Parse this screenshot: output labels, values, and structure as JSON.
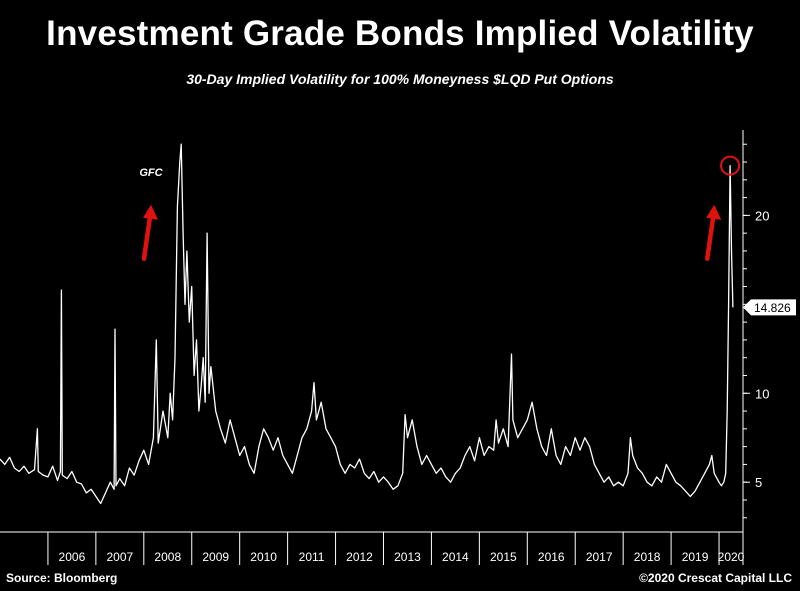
{
  "header": {
    "title": "Investment Grade Bonds Implied Volatility",
    "subtitle": "30-Day Implied Volatility for 100% Moneyness $LQD Put Options"
  },
  "footer": {
    "source": "Source: Bloomberg",
    "copyright": "©2020 Crescat Capital LLC"
  },
  "colors": {
    "background": "#000000",
    "line": "#ffffff",
    "annotation": "#e0120f"
  },
  "chart_data": {
    "type": "line",
    "title": "Investment Grade Bonds Implied Volatility",
    "subtitle": "30-Day Implied Volatility for 100% Moneyness $LQD Put Options",
    "xlabel": "",
    "ylabel": "",
    "x_range": [
      2005.0,
      2020.5
    ],
    "ylim": [
      2.2,
      24.8
    ],
    "y_ticks": [
      5,
      10,
      20
    ],
    "y_tick_labels": [
      "5",
      "10",
      "20"
    ],
    "x_tick_labels": [
      "2006",
      "2007",
      "2008",
      "2009",
      "2010",
      "2011",
      "2012",
      "2013",
      "2014",
      "2015",
      "2016",
      "2017",
      "2018",
      "2019",
      "2020"
    ],
    "grid": false,
    "last_value": 14.826,
    "last_value_label": "14.826",
    "series": [
      {
        "name": "LQD 30-Day Implied Volatility (100% Moneyness Put)",
        "points": [
          [
            2005.0,
            6.3
          ],
          [
            2005.1,
            6.0
          ],
          [
            2005.2,
            6.4
          ],
          [
            2005.3,
            5.8
          ],
          [
            2005.4,
            5.6
          ],
          [
            2005.5,
            5.9
          ],
          [
            2005.6,
            5.5
          ],
          [
            2005.72,
            5.7
          ],
          [
            2005.78,
            8.0
          ],
          [
            2005.8,
            5.6
          ],
          [
            2005.9,
            5.4
          ],
          [
            2006.0,
            5.3
          ],
          [
            2006.1,
            5.9
          ],
          [
            2006.2,
            5.1
          ],
          [
            2006.26,
            5.6
          ],
          [
            2006.28,
            15.8
          ],
          [
            2006.3,
            5.4
          ],
          [
            2006.4,
            5.2
          ],
          [
            2006.5,
            5.6
          ],
          [
            2006.6,
            5.0
          ],
          [
            2006.7,
            4.9
          ],
          [
            2006.8,
            4.4
          ],
          [
            2006.9,
            4.6
          ],
          [
            2007.0,
            4.2
          ],
          [
            2007.1,
            3.8
          ],
          [
            2007.2,
            4.4
          ],
          [
            2007.3,
            5.0
          ],
          [
            2007.38,
            4.6
          ],
          [
            2007.4,
            13.6
          ],
          [
            2007.42,
            4.8
          ],
          [
            2007.5,
            5.2
          ],
          [
            2007.6,
            4.8
          ],
          [
            2007.7,
            5.8
          ],
          [
            2007.8,
            5.4
          ],
          [
            2007.9,
            6.2
          ],
          [
            2008.0,
            6.8
          ],
          [
            2008.1,
            6.0
          ],
          [
            2008.2,
            7.5
          ],
          [
            2008.26,
            13.0
          ],
          [
            2008.3,
            7.2
          ],
          [
            2008.4,
            9.0
          ],
          [
            2008.5,
            7.5
          ],
          [
            2008.55,
            10.0
          ],
          [
            2008.6,
            8.5
          ],
          [
            2008.65,
            12.0
          ],
          [
            2008.7,
            20.5
          ],
          [
            2008.75,
            23.0
          ],
          [
            2008.78,
            24.0
          ],
          [
            2008.82,
            19.0
          ],
          [
            2008.86,
            15.0
          ],
          [
            2008.9,
            18.0
          ],
          [
            2008.95,
            14.0
          ],
          [
            2009.0,
            16.0
          ],
          [
            2009.05,
            11.0
          ],
          [
            2009.1,
            13.0
          ],
          [
            2009.15,
            9.0
          ],
          [
            2009.2,
            10.5
          ],
          [
            2009.24,
            12.0
          ],
          [
            2009.28,
            9.5
          ],
          [
            2009.32,
            19.0
          ],
          [
            2009.36,
            10.0
          ],
          [
            2009.4,
            11.5
          ],
          [
            2009.5,
            9.0
          ],
          [
            2009.6,
            8.0
          ],
          [
            2009.7,
            7.2
          ],
          [
            2009.8,
            8.5
          ],
          [
            2009.9,
            7.5
          ],
          [
            2010.0,
            6.5
          ],
          [
            2010.1,
            7.0
          ],
          [
            2010.2,
            6.0
          ],
          [
            2010.3,
            5.5
          ],
          [
            2010.4,
            7.0
          ],
          [
            2010.5,
            8.0
          ],
          [
            2010.6,
            7.5
          ],
          [
            2010.7,
            6.8
          ],
          [
            2010.8,
            7.5
          ],
          [
            2010.9,
            6.5
          ],
          [
            2011.0,
            6.0
          ],
          [
            2011.1,
            5.5
          ],
          [
            2011.2,
            6.5
          ],
          [
            2011.3,
            7.5
          ],
          [
            2011.4,
            8.0
          ],
          [
            2011.5,
            9.0
          ],
          [
            2011.55,
            10.6
          ],
          [
            2011.6,
            8.5
          ],
          [
            2011.7,
            9.5
          ],
          [
            2011.8,
            8.0
          ],
          [
            2011.9,
            7.5
          ],
          [
            2012.0,
            7.0
          ],
          [
            2012.1,
            6.0
          ],
          [
            2012.2,
            5.5
          ],
          [
            2012.3,
            6.0
          ],
          [
            2012.4,
            5.8
          ],
          [
            2012.5,
            6.3
          ],
          [
            2012.6,
            5.5
          ],
          [
            2012.7,
            5.2
          ],
          [
            2012.8,
            5.6
          ],
          [
            2012.9,
            5.0
          ],
          [
            2013.0,
            5.3
          ],
          [
            2013.1,
            5.0
          ],
          [
            2013.2,
            4.6
          ],
          [
            2013.3,
            4.8
          ],
          [
            2013.4,
            5.5
          ],
          [
            2013.45,
            8.8
          ],
          [
            2013.5,
            7.5
          ],
          [
            2013.6,
            8.5
          ],
          [
            2013.7,
            7.0
          ],
          [
            2013.8,
            6.0
          ],
          [
            2013.9,
            6.5
          ],
          [
            2014.0,
            6.0
          ],
          [
            2014.1,
            5.5
          ],
          [
            2014.2,
            5.8
          ],
          [
            2014.3,
            5.3
          ],
          [
            2014.4,
            5.0
          ],
          [
            2014.5,
            5.5
          ],
          [
            2014.6,
            5.8
          ],
          [
            2014.7,
            6.5
          ],
          [
            2014.8,
            7.0
          ],
          [
            2014.9,
            6.2
          ],
          [
            2015.0,
            7.5
          ],
          [
            2015.1,
            6.5
          ],
          [
            2015.2,
            7.0
          ],
          [
            2015.3,
            6.8
          ],
          [
            2015.35,
            8.5
          ],
          [
            2015.4,
            7.2
          ],
          [
            2015.5,
            8.0
          ],
          [
            2015.6,
            7.0
          ],
          [
            2015.67,
            12.2
          ],
          [
            2015.7,
            8.5
          ],
          [
            2015.8,
            7.5
          ],
          [
            2015.9,
            8.0
          ],
          [
            2016.0,
            8.5
          ],
          [
            2016.1,
            9.5
          ],
          [
            2016.2,
            8.0
          ],
          [
            2016.3,
            7.0
          ],
          [
            2016.4,
            6.5
          ],
          [
            2016.5,
            8.0
          ],
          [
            2016.6,
            6.5
          ],
          [
            2016.7,
            6.0
          ],
          [
            2016.8,
            7.0
          ],
          [
            2016.9,
            6.5
          ],
          [
            2017.0,
            7.5
          ],
          [
            2017.1,
            6.8
          ],
          [
            2017.2,
            7.5
          ],
          [
            2017.3,
            7.0
          ],
          [
            2017.4,
            6.0
          ],
          [
            2017.5,
            5.5
          ],
          [
            2017.6,
            5.0
          ],
          [
            2017.7,
            5.3
          ],
          [
            2017.8,
            4.8
          ],
          [
            2017.9,
            5.0
          ],
          [
            2018.0,
            4.8
          ],
          [
            2018.1,
            5.5
          ],
          [
            2018.15,
            7.5
          ],
          [
            2018.2,
            6.5
          ],
          [
            2018.3,
            5.8
          ],
          [
            2018.4,
            5.5
          ],
          [
            2018.5,
            5.0
          ],
          [
            2018.6,
            4.8
          ],
          [
            2018.7,
            5.3
          ],
          [
            2018.8,
            5.0
          ],
          [
            2018.9,
            6.0
          ],
          [
            2019.0,
            5.5
          ],
          [
            2019.1,
            5.0
          ],
          [
            2019.2,
            4.8
          ],
          [
            2019.3,
            4.5
          ],
          [
            2019.4,
            4.2
          ],
          [
            2019.5,
            4.5
          ],
          [
            2019.6,
            5.0
          ],
          [
            2019.7,
            5.5
          ],
          [
            2019.8,
            6.0
          ],
          [
            2019.85,
            6.5
          ],
          [
            2019.9,
            5.5
          ],
          [
            2020.0,
            5.0
          ],
          [
            2020.05,
            4.8
          ],
          [
            2020.1,
            5.0
          ],
          [
            2020.14,
            5.5
          ],
          [
            2020.17,
            9.0
          ],
          [
            2020.2,
            15.0
          ],
          [
            2020.23,
            22.8
          ],
          [
            2020.26,
            18.0
          ],
          [
            2020.29,
            14.826
          ]
        ]
      }
    ],
    "annotations": [
      {
        "label": "GFC",
        "x": 2008.15,
        "y": 22.2,
        "kind": "text"
      },
      {
        "label": "",
        "x": 2008.15,
        "y": 20.6,
        "kind": "arrow-up"
      },
      {
        "label": "",
        "x": 2020.23,
        "y": 22.8,
        "kind": "circle"
      },
      {
        "label": "",
        "x": 2019.9,
        "y": 20.6,
        "kind": "arrow-up"
      }
    ]
  }
}
